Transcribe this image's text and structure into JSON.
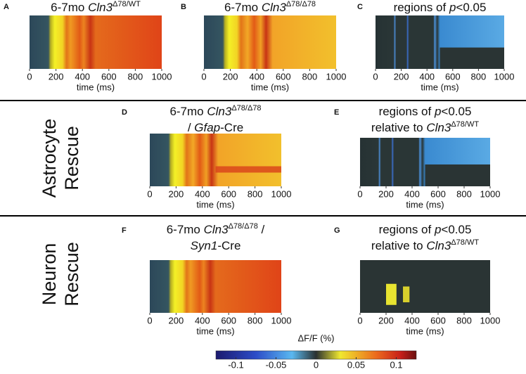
{
  "panels": [
    {
      "letter": "A",
      "title_lines": [
        [
          {
            "text": "6-7mo "
          },
          {
            "text": "Cln3",
            "style": "italic"
          },
          {
            "text": "Δ78/WT",
            "style": "sup"
          }
        ]
      ],
      "xlabel": "time (ms)",
      "xlim": [
        0,
        1000
      ],
      "xticks": [
        0,
        200,
        400,
        600,
        800,
        1000
      ]
    },
    {
      "letter": "B",
      "title_lines": [
        [
          {
            "text": "6-7mo "
          },
          {
            "text": "Cln3",
            "style": "italic"
          },
          {
            "text": "Δ78/Δ78",
            "style": "sup"
          }
        ]
      ],
      "xlabel": "time (ms)",
      "xlim": [
        0,
        1000
      ],
      "xticks": [
        0,
        200,
        400,
        600,
        800,
        1000
      ]
    },
    {
      "letter": "C",
      "title_lines": [
        [
          {
            "text": "regions of "
          },
          {
            "text": "p",
            "style": "italic"
          },
          {
            "text": "<0.05"
          }
        ]
      ],
      "xlabel": "time (ms)",
      "xlim": [
        0,
        1000
      ],
      "xticks": [
        0,
        200,
        400,
        600,
        800,
        1000
      ]
    },
    {
      "letter": "D",
      "title_lines": [
        [
          {
            "text": "6-7mo "
          },
          {
            "text": "Cln3",
            "style": "italic"
          },
          {
            "text": "Δ78/Δ78",
            "style": "sup"
          }
        ],
        [
          {
            "text": "/ "
          },
          {
            "text": "Gfap",
            "style": "italic"
          },
          {
            "text": "-Cre"
          }
        ]
      ],
      "xlabel": "time (ms)",
      "xlim": [
        0,
        1000
      ],
      "xticks": [
        0,
        200,
        400,
        600,
        800,
        1000
      ]
    },
    {
      "letter": "E",
      "title_lines": [
        [
          {
            "text": "regions of "
          },
          {
            "text": "p",
            "style": "italic"
          },
          {
            "text": "<0.05"
          }
        ],
        [
          {
            "text": "relative to "
          },
          {
            "text": "Cln3",
            "style": "italic"
          },
          {
            "text": "Δ78/WT",
            "style": "sup"
          }
        ]
      ],
      "xlabel": "time (ms)",
      "xlim": [
        0,
        1000
      ],
      "xticks": [
        0,
        200,
        400,
        600,
        800,
        1000
      ]
    },
    {
      "letter": "F",
      "title_lines": [
        [
          {
            "text": "6-7mo "
          },
          {
            "text": "Cln3",
            "style": "italic"
          },
          {
            "text": "Δ78/Δ78",
            "style": "sup"
          },
          {
            "text": " /"
          }
        ],
        [
          {
            "text": "Syn1",
            "style": "italic"
          },
          {
            "text": "-Cre"
          }
        ]
      ],
      "xlabel": "time (ms)",
      "xlim": [
        0,
        1000
      ],
      "xticks": [
        0,
        200,
        400,
        600,
        800,
        1000
      ]
    },
    {
      "letter": "G",
      "title_lines": [
        [
          {
            "text": "regions of "
          },
          {
            "text": "p",
            "style": "italic"
          },
          {
            "text": "<0.05"
          }
        ],
        [
          {
            "text": "relative to "
          },
          {
            "text": "Cln3",
            "style": "italic"
          },
          {
            "text": "Δ78/WT",
            "style": "sup"
          }
        ]
      ],
      "xlabel": "time (ms)",
      "xlim": [
        0,
        1000
      ],
      "xticks": [
        0,
        200,
        400,
        600,
        800,
        1000
      ]
    }
  ],
  "row_labels": [
    [
      "Astrocyte",
      "Rescue"
    ],
    [
      "Neuron",
      "Rescue"
    ]
  ],
  "colorbar": {
    "label": "ΔF/F (%)",
    "lim": [
      -0.125,
      0.125
    ],
    "ticks": [
      -0.1,
      -0.05,
      0,
      0.05,
      0.1
    ]
  }
}
